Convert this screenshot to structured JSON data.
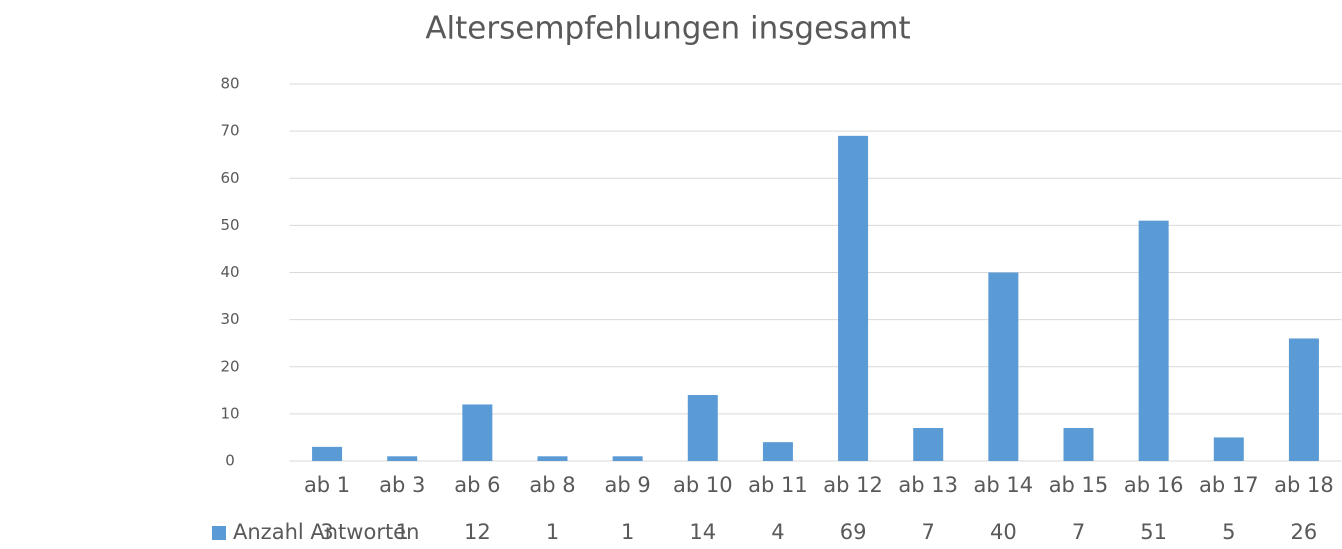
{
  "chart_data": {
    "type": "bar",
    "title": "Altersempfehlungen insgesamt",
    "categories": [
      "ab 1",
      "ab 3",
      "ab 6",
      "ab 8",
      "ab 9",
      "ab 10",
      "ab 11",
      "ab 12",
      "ab 13",
      "ab 14",
      "ab 15",
      "ab 16",
      "ab 17",
      "ab 18"
    ],
    "series": [
      {
        "name": "Anzahl Antworten",
        "color": "#5b9bd5",
        "values": [
          3,
          1,
          12,
          1,
          1,
          14,
          4,
          69,
          7,
          40,
          7,
          51,
          5,
          26
        ]
      }
    ],
    "ylim": [
      0,
      80
    ],
    "yticks": [
      0,
      10,
      20,
      30,
      40,
      50,
      60,
      70,
      80
    ],
    "grid": true,
    "data_table": true
  }
}
